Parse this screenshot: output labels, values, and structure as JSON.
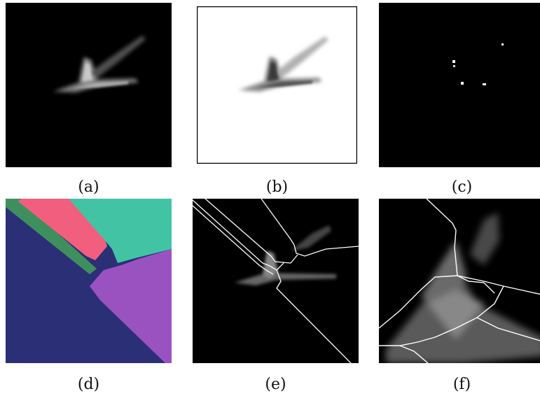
{
  "figure": {
    "panels": [
      {
        "id": "a",
        "caption": "(a)",
        "content": "grayscale-blob-on-black"
      },
      {
        "id": "b",
        "caption": "(b)",
        "content": "inverted-grayscale-blob-on-white"
      },
      {
        "id": "c",
        "caption": "(c)",
        "content": "sparse-white-points-on-black"
      },
      {
        "id": "d",
        "caption": "(d)",
        "content": "four-region-color-segmentation"
      },
      {
        "id": "e",
        "caption": "(e)",
        "content": "white-boundaries-overlay"
      },
      {
        "id": "f",
        "caption": "(f)",
        "content": "zoomed-boundaries-overlay"
      }
    ],
    "segment_colors": {
      "navy": "#2a2f76",
      "pink": "#f25f7e",
      "teal": "#42c4a4",
      "purple": "#9a52c1",
      "green": "#3f8f5e"
    }
  }
}
